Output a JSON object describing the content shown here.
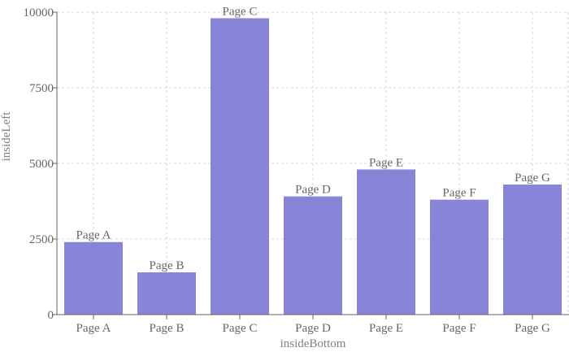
{
  "chart_data": {
    "type": "bar",
    "categories": [
      "Page A",
      "Page B",
      "Page C",
      "Page D",
      "Page E",
      "Page F",
      "Page G"
    ],
    "values": [
      2400,
      1398,
      9800,
      3908,
      4800,
      3800,
      4300
    ],
    "data_labels": [
      "Page A",
      "Page B",
      "Page C",
      "Page D",
      "Page E",
      "Page F",
      "Page G"
    ],
    "xlabel": "insideBottom",
    "ylabel": "insideLeft",
    "ylim": [
      0,
      10000
    ],
    "yticks": [
      0,
      2500,
      5000,
      7500,
      10000
    ],
    "grid": true,
    "bar_color": "#8884d8"
  }
}
